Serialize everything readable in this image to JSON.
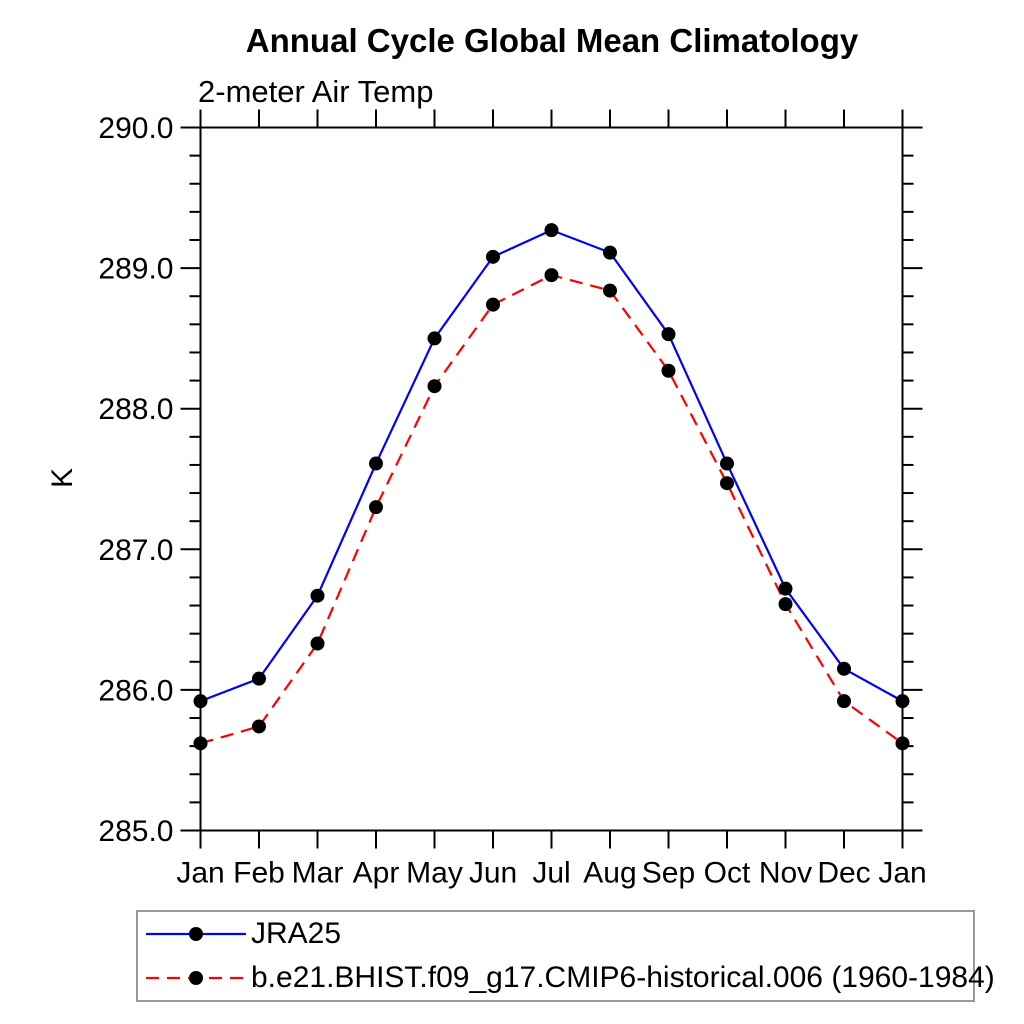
{
  "chart_data": {
    "type": "line",
    "title": "Annual Cycle Global Mean Climatology",
    "subtitle": "2-meter Air Temp",
    "ylabel": "K",
    "xlabel": "",
    "categories": [
      "Jan",
      "Feb",
      "Mar",
      "Apr",
      "May",
      "Jun",
      "Jul",
      "Aug",
      "Sep",
      "Oct",
      "Nov",
      "Dec",
      "Jan"
    ],
    "ylim": [
      285.0,
      290.0
    ],
    "ytick_major": 1.0,
    "ytick_minor": 0.2,
    "ytick_labels": [
      "285.0",
      "286.0",
      "287.0",
      "288.0",
      "289.0",
      "290.0"
    ],
    "grid": false,
    "legend_position": "bottom-left",
    "marker": {
      "shape": "circle",
      "color": "#000000"
    },
    "axis_color": "#000000",
    "series": [
      {
        "name": "JRA25",
        "color": "#0000ff",
        "line_style": "solid",
        "values": [
          285.92,
          286.08,
          286.67,
          287.61,
          288.5,
          289.08,
          289.27,
          289.11,
          288.53,
          287.61,
          286.72,
          286.15,
          285.92
        ]
      },
      {
        "name": "b.e21.BHIST.f09_g17.CMIP6-historical.006 (1960-1984)",
        "color": "#ff0000",
        "line_style": "dashed",
        "values": [
          285.62,
          285.74,
          286.33,
          287.3,
          288.16,
          288.74,
          288.95,
          288.84,
          288.27,
          287.47,
          286.61,
          285.92,
          285.62
        ]
      }
    ]
  }
}
